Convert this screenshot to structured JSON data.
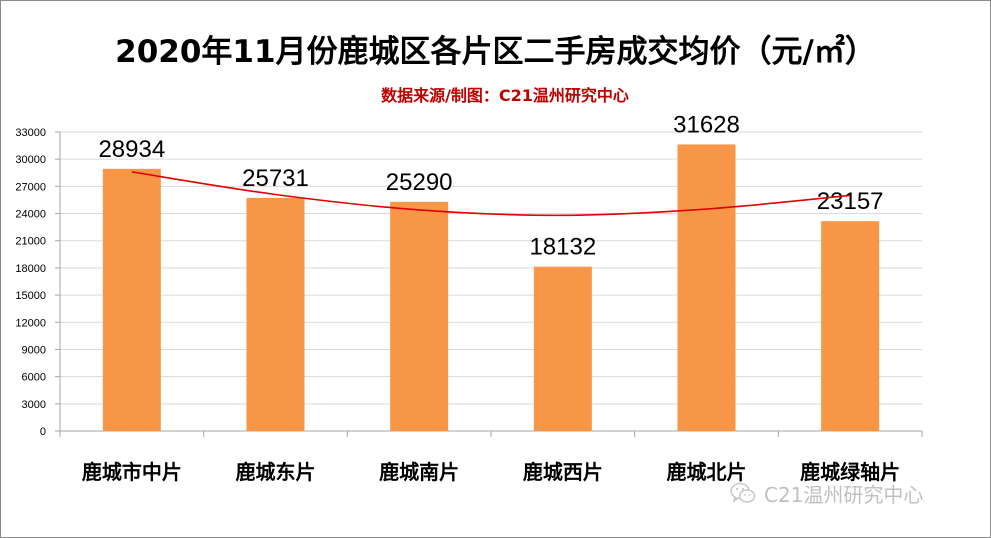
{
  "chart_data": {
    "type": "bar",
    "title": "2020年11月份鹿城区各片区二手房成交均价（元/㎡）",
    "subtitle": "数据来源/制图：C21温州研究中心",
    "categories": [
      "鹿城市中片",
      "鹿城东片",
      "鹿城南片",
      "鹿城西片",
      "鹿城北片",
      "鹿城绿轴片"
    ],
    "values": [
      28934,
      25731,
      25290,
      18132,
      31628,
      23157
    ],
    "value_labels": [
      "28934",
      "25731",
      "25290",
      "18132",
      "31628",
      "23157"
    ],
    "ylim": [
      0,
      33000
    ],
    "yticks": [
      0,
      3000,
      6000,
      9000,
      12000,
      15000,
      18000,
      21000,
      24000,
      27000,
      30000,
      33000
    ],
    "ytick_labels": [
      "0",
      "3000",
      "6000",
      "9000",
      "12000",
      "15000",
      "18000",
      "21000",
      "24000",
      "27000",
      "30000",
      "33000"
    ],
    "trendline": {
      "type": "polynomial",
      "values": [
        28600,
        26100,
        24400,
        23800,
        24500,
        26000
      ]
    },
    "grid": true,
    "legend": "none",
    "colors": {
      "bar": "#f79646",
      "trendline": "#e00000",
      "grid": "#d9d9d9",
      "axis": "#a6a6a6",
      "subtitle": "#c00000"
    }
  },
  "watermark": {
    "text": "C21温州研究中心",
    "icon": "wechat-icon"
  }
}
